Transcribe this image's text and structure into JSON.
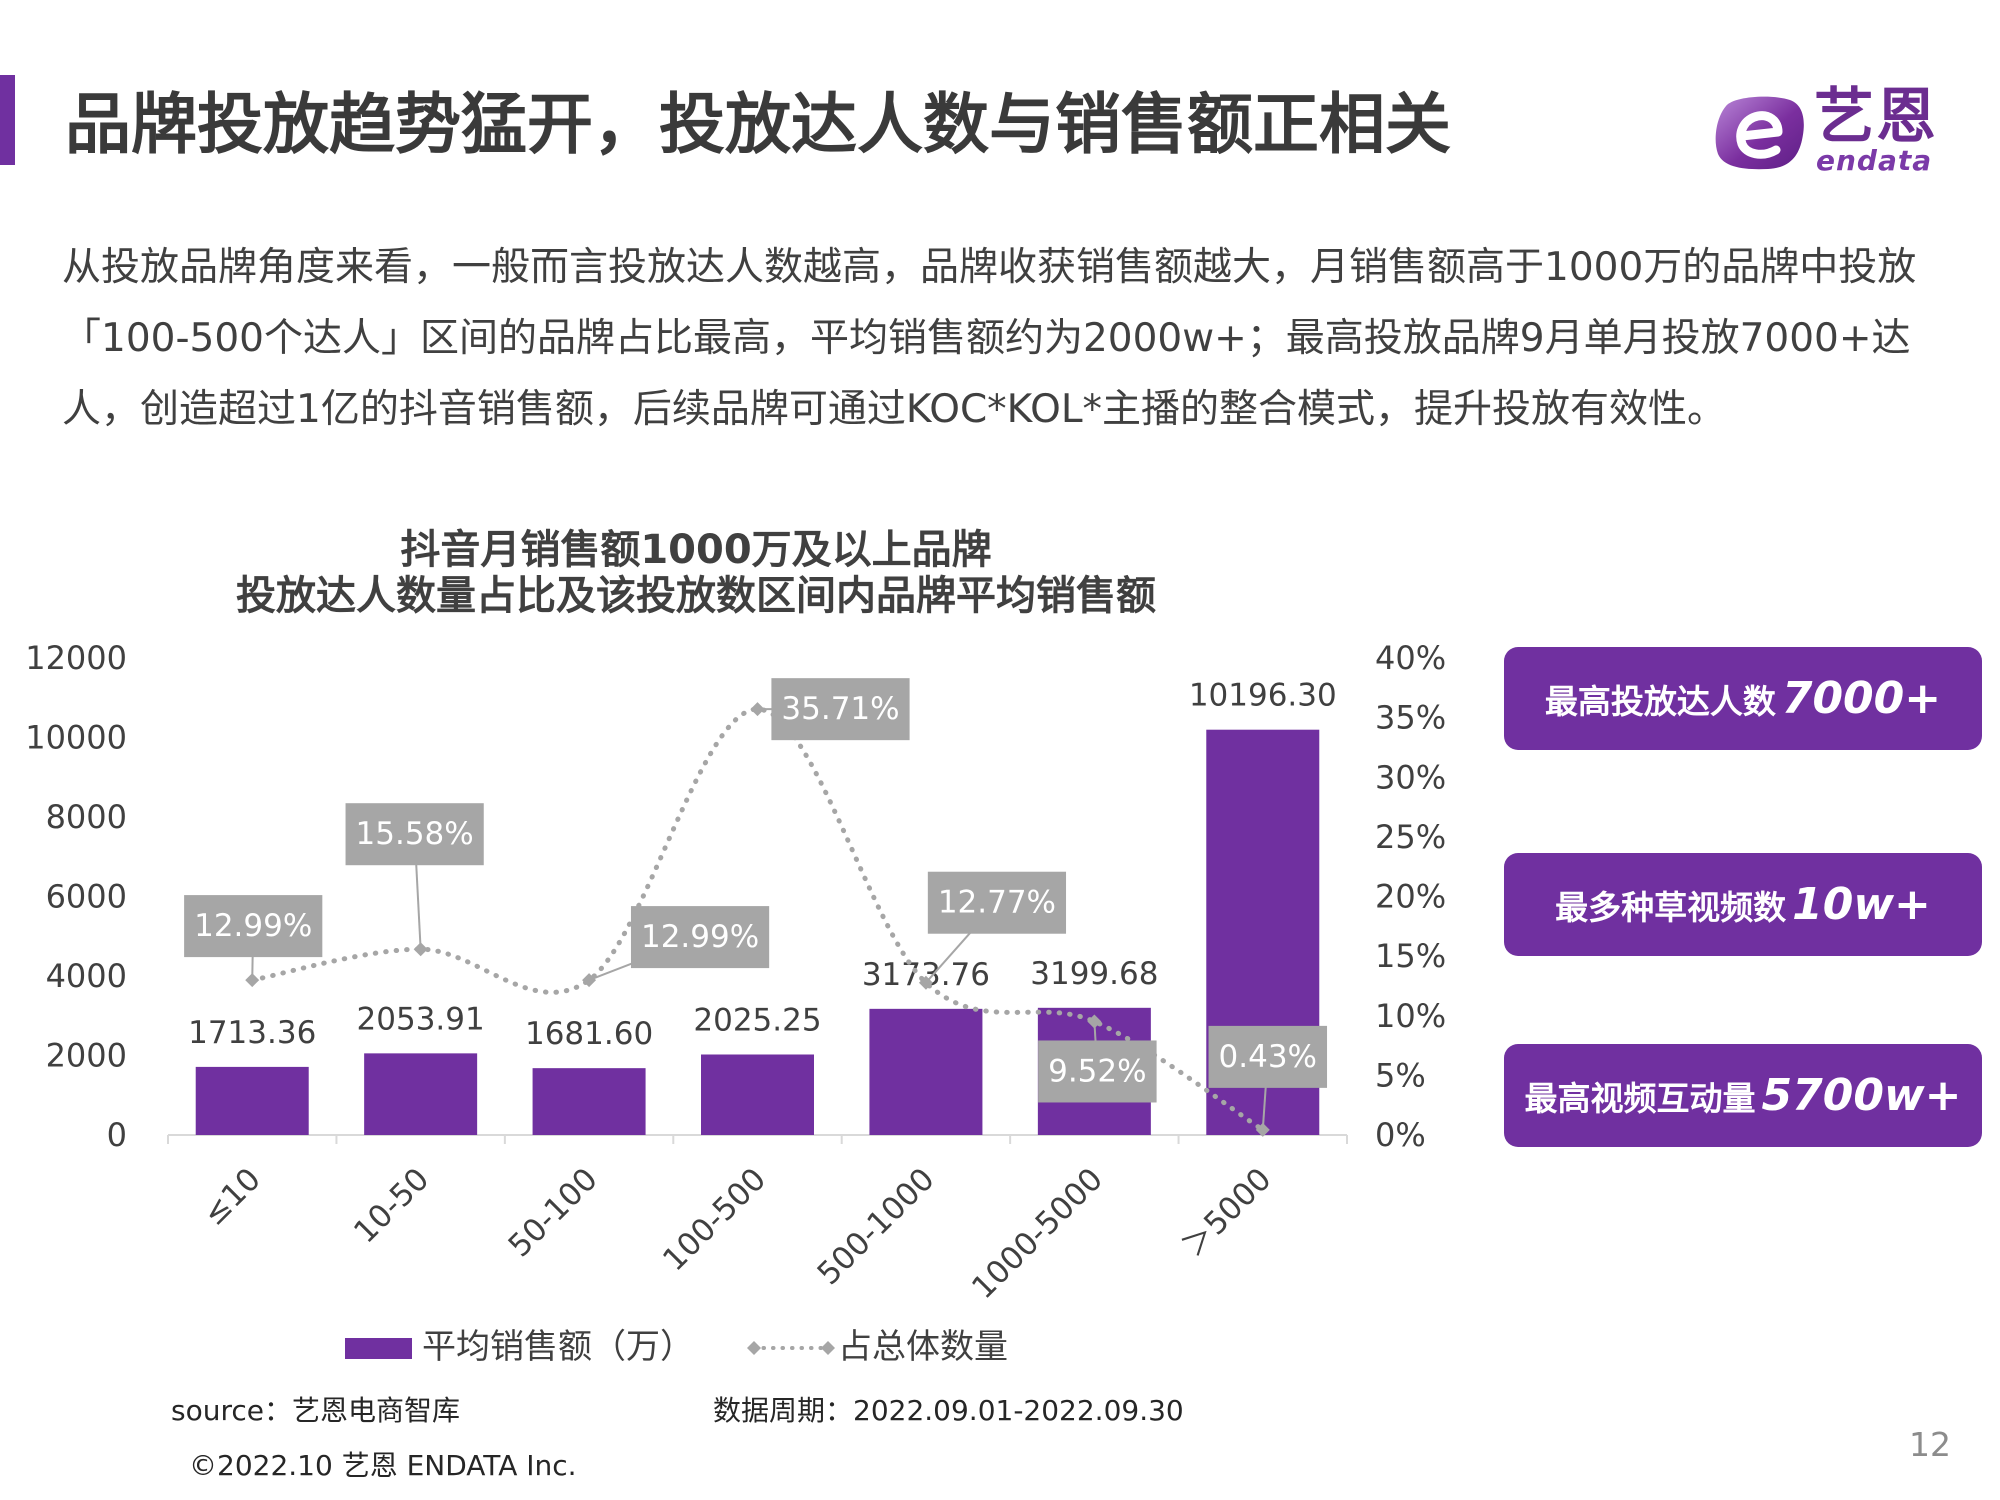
{
  "title": "品牌投放趋势猛开，投放达人数与销售额正相关",
  "logo": {
    "brand_cn": "艺恩",
    "brand_en": "endata",
    "icon": "endata-e-logo-icon"
  },
  "intro_lines": [
    "从投放品牌角度来看，一般而言投放达人数越高，品牌收获销售额越大，月销售额高于1000万的品牌中投放",
    "「100-500个达人」区间的品牌占比最高，平均销售额约为2000w+；最高投放品牌9月单月投放7000+达",
    "人，创造超过1亿的抖音销售额，后续品牌可通过KOC*KOL*主播的整合模式，提升投放有效性。"
  ],
  "chart_data": {
    "type": "bar",
    "title_lines": [
      "抖音月销售额1000万及以上品牌",
      "投放达人数量占比及该投放数区间内品牌平均销售额"
    ],
    "categories": [
      "≤10",
      "10-50",
      "50-100",
      "100-500",
      "500-1000",
      "1000-5000",
      "＞5000"
    ],
    "series": [
      {
        "name": "平均销售额（万）",
        "type": "bar",
        "color": "#7030a0",
        "values": [
          1713.36,
          2053.91,
          1681.6,
          2025.25,
          3173.76,
          3199.68,
          10196.3
        ],
        "value_labels": [
          "1713.36",
          "2053.91",
          "1681.60",
          "2025.25",
          "3173.76",
          "3199.68",
          "10196.30"
        ]
      },
      {
        "name": "占总体数量",
        "type": "line",
        "color": "#a6a6a6",
        "values": [
          12.99,
          15.58,
          12.99,
          35.71,
          12.77,
          9.52,
          0.43
        ],
        "value_labels": [
          "12.99%",
          "15.58%",
          "12.99%",
          "35.71%",
          "12.77%",
          "9.52%",
          "0.43%"
        ]
      }
    ],
    "y_left": {
      "range": [
        0,
        12000
      ],
      "ticks": [
        "0",
        "2000",
        "4000",
        "6000",
        "8000",
        "10000",
        "12000"
      ]
    },
    "y_right": {
      "range": [
        0,
        40
      ],
      "ticks": [
        "0%",
        "5%",
        "10%",
        "15%",
        "20%",
        "25%",
        "30%",
        "35%",
        "40%"
      ]
    },
    "grid": false,
    "legend": "bottom",
    "colors": {
      "axis": "#d9d9d9",
      "label_box": "#a6a6a6",
      "label_text": "#ffffff"
    }
  },
  "highlights": [
    {
      "label": "最高投放达人数",
      "value": "7000+"
    },
    {
      "label": "最多种草视频数",
      "value": "10w+"
    },
    {
      "label": "最高视频互动量",
      "value": "5700w+"
    }
  ],
  "footer": {
    "source": "source：艺恩电商智库",
    "data_period": "数据周期：2022.09.01-2022.09.30",
    "copyright": "©2022.10 艺恩 ENDATA Inc."
  },
  "page_number": "12",
  "colors": {
    "accent": "#7030a0",
    "title": "#3a3a3a",
    "body_text": "#404040"
  }
}
